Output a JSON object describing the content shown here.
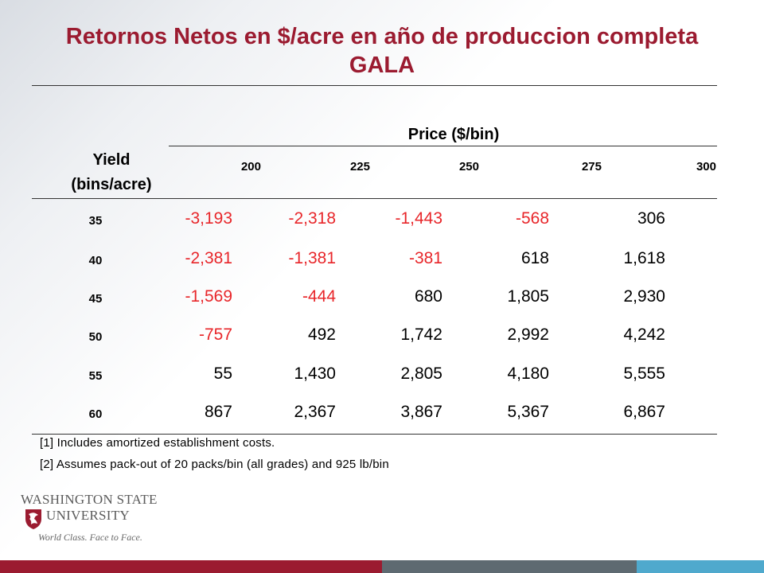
{
  "title_line1": "Retornos Netos en $/acre en año de produccion completa",
  "title_line2": "GALA",
  "table": {
    "yield_header_line1": "Yield",
    "yield_header_line2": "(bins/acre)",
    "price_header": "Price ($/bin)",
    "prices": [
      "200",
      "225",
      "250",
      "275",
      "300"
    ],
    "rows": [
      {
        "yield": "35",
        "values": [
          "-3,193",
          "-2,318",
          "-1,443",
          "-568",
          "306"
        ]
      },
      {
        "yield": "40",
        "values": [
          "-2,381",
          "-1,381",
          "-381",
          "618",
          "1,618"
        ]
      },
      {
        "yield": "45",
        "values": [
          "-1,569",
          "-444",
          "680",
          "1,805",
          "2,930"
        ]
      },
      {
        "yield": "50",
        "values": [
          "-757",
          "492",
          "1,742",
          "2,992",
          "4,242"
        ]
      },
      {
        "yield": "55",
        "values": [
          "55",
          "1,430",
          "2,805",
          "4,180",
          "5,555"
        ]
      },
      {
        "yield": "60",
        "values": [
          "867",
          "2,367",
          "3,867",
          "5,367",
          "6,867"
        ]
      }
    ]
  },
  "footnotes": [
    "[1] Includes amortized establishment costs.",
    "[2] Assumes pack-out of 20 packs/bin (all grades) and 925 lb/bin"
  ],
  "logo": {
    "line1": "WASHINGTON STATE",
    "line2": "UNIVERSITY",
    "tagline": "World Class. Face to Face."
  },
  "colors": {
    "title": "#9b1b30",
    "negative": "#e8262a",
    "bar_red": "#9b1b30",
    "bar_gray": "#5e6a71",
    "bar_blue": "#4fa9cd"
  }
}
